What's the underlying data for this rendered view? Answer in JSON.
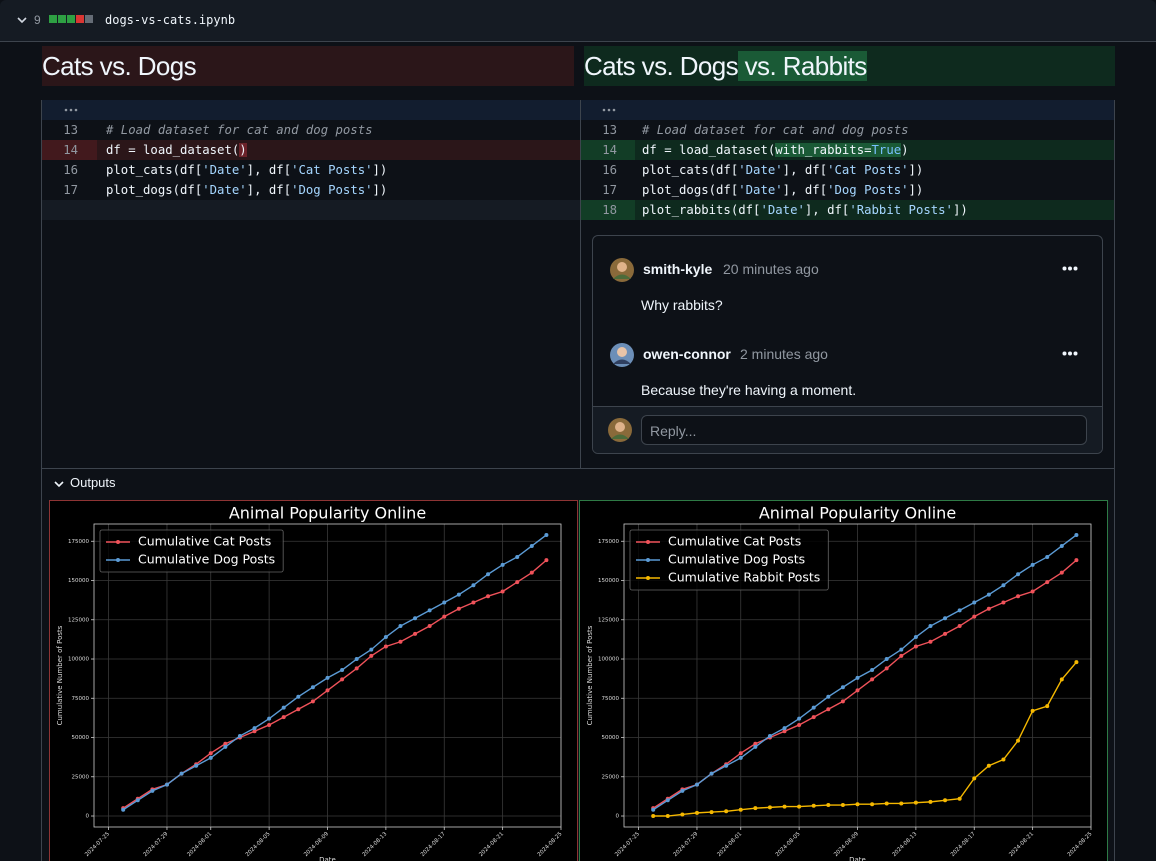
{
  "file": {
    "count": "9",
    "name": "dogs-vs-cats.ipynb"
  },
  "headings": {
    "left": "Cats vs. Dogs",
    "right": "Cats vs. Dogs",
    "right_added": " vs. Rabbits"
  },
  "diff": {
    "left": [
      {
        "num": "13",
        "code": [
          "# Load dataset for cat and dog posts"
        ]
      },
      {
        "num": "14",
        "code": [
          "df = load_dataset(",
          ")"
        ]
      },
      {
        "num": "16",
        "code": [
          "plot_cats(df[",
          "'Date'",
          "], df[",
          "'Cat Posts'",
          "])"
        ]
      },
      {
        "num": "17",
        "code": [
          "plot_dogs(df[",
          "'Date'",
          "], df[",
          "'Dog Posts'",
          "])"
        ]
      }
    ],
    "right": [
      {
        "num": "13",
        "code": [
          "# Load dataset for cat and dog posts"
        ]
      },
      {
        "num": "14",
        "code": [
          "df = load_dataset(",
          "with_rabbits=",
          "True",
          ")"
        ]
      },
      {
        "num": "16",
        "code": [
          "plot_cats(df[",
          "'Date'",
          "], df[",
          "'Cat Posts'",
          "])"
        ]
      },
      {
        "num": "17",
        "code": [
          "plot_dogs(df[",
          "'Date'",
          "], df[",
          "'Dog Posts'",
          "])"
        ]
      },
      {
        "num": "18",
        "code": [
          "plot_rabbits(df[",
          "'Date'",
          "], df[",
          "'Rabbit Posts'",
          "])"
        ]
      }
    ]
  },
  "comments": [
    {
      "author": "smith-kyle",
      "time": "20 minutes ago",
      "body": "Why rabbits?"
    },
    {
      "author": "owen-connor",
      "time": "2 minutes ago",
      "body": "Because they're having a moment."
    }
  ],
  "reply_placeholder": "Reply...",
  "outputs_label": "Outputs",
  "chart_data": [
    {
      "type": "line",
      "title": "Animal Popularity Online",
      "x_label": "Date",
      "y_label": "Cumulative Number of Posts",
      "x": [
        "2024-07-26",
        "2024-07-27",
        "2024-07-28",
        "2024-07-29",
        "2024-07-30",
        "2024-07-31",
        "2024-08-01",
        "2024-08-02",
        "2024-08-03",
        "2024-08-04",
        "2024-08-05",
        "2024-08-06",
        "2024-08-07",
        "2024-08-08",
        "2024-08-09",
        "2024-08-10",
        "2024-08-11",
        "2024-08-12",
        "2024-08-13",
        "2024-08-14",
        "2024-08-15",
        "2024-08-16",
        "2024-08-17",
        "2024-08-18",
        "2024-08-19",
        "2024-08-20",
        "2024-08-21",
        "2024-08-22",
        "2024-08-23",
        "2024-08-24"
      ],
      "series": [
        {
          "name": "Cumulative Cat Posts",
          "color": "#f0525a",
          "values": [
            5000,
            11000,
            17000,
            20000,
            27000,
            33000,
            40000,
            46000,
            50000,
            54000,
            58000,
            63000,
            68000,
            73000,
            80000,
            87000,
            94000,
            102000,
            108000,
            111000,
            116000,
            121000,
            127000,
            132000,
            136000,
            140000,
            143000,
            149000,
            155000,
            163000
          ]
        },
        {
          "name": "Cumulative Dog Posts",
          "color": "#5b9bd5",
          "values": [
            4000,
            10000,
            16000,
            20000,
            27000,
            32000,
            37000,
            44000,
            51000,
            56000,
            62000,
            69000,
            76000,
            82000,
            88000,
            93000,
            100000,
            106000,
            114000,
            121000,
            126000,
            131000,
            136000,
            141000,
            147000,
            154000,
            160000,
            165000,
            172000,
            179000
          ]
        }
      ],
      "xlim": [
        "2024-07-24",
        "2024-08-25"
      ],
      "xticks": [
        "2024-07-25",
        "2024-07-29",
        "2024-08-01",
        "2024-08-05",
        "2024-08-09",
        "2024-08-13",
        "2024-08-17",
        "2024-08-21",
        "2024-08-25"
      ],
      "ylim": [
        -7000,
        186000
      ],
      "yticks": [
        0,
        25000,
        50000,
        75000,
        100000,
        125000,
        150000,
        175000
      ],
      "grid": true,
      "legend": "upper left"
    },
    {
      "type": "line",
      "title": "Animal Popularity Online",
      "x_label": "Date",
      "y_label": "Cumulative Number of Posts",
      "x": [
        "2024-07-26",
        "2024-07-27",
        "2024-07-28",
        "2024-07-29",
        "2024-07-30",
        "2024-07-31",
        "2024-08-01",
        "2024-08-02",
        "2024-08-03",
        "2024-08-04",
        "2024-08-05",
        "2024-08-06",
        "2024-08-07",
        "2024-08-08",
        "2024-08-09",
        "2024-08-10",
        "2024-08-11",
        "2024-08-12",
        "2024-08-13",
        "2024-08-14",
        "2024-08-15",
        "2024-08-16",
        "2024-08-17",
        "2024-08-18",
        "2024-08-19",
        "2024-08-20",
        "2024-08-21",
        "2024-08-22",
        "2024-08-23",
        "2024-08-24"
      ],
      "series": [
        {
          "name": "Cumulative Cat Posts",
          "color": "#f0525a",
          "values": [
            5000,
            11000,
            17000,
            20000,
            27000,
            33000,
            40000,
            46000,
            50000,
            54000,
            58000,
            63000,
            68000,
            73000,
            80000,
            87000,
            94000,
            102000,
            108000,
            111000,
            116000,
            121000,
            127000,
            132000,
            136000,
            140000,
            143000,
            149000,
            155000,
            163000
          ]
        },
        {
          "name": "Cumulative Dog Posts",
          "color": "#5b9bd5",
          "values": [
            4000,
            10000,
            16000,
            20000,
            27000,
            32000,
            37000,
            44000,
            51000,
            56000,
            62000,
            69000,
            76000,
            82000,
            88000,
            93000,
            100000,
            106000,
            114000,
            121000,
            126000,
            131000,
            136000,
            141000,
            147000,
            154000,
            160000,
            165000,
            172000,
            179000
          ]
        },
        {
          "name": "Cumulative Rabbit Posts",
          "color": "#f5b800",
          "values": [
            0,
            0,
            1000,
            2000,
            2500,
            3000,
            4000,
            5000,
            5500,
            6000,
            6000,
            6500,
            7000,
            7000,
            7500,
            7500,
            8000,
            8000,
            8500,
            9000,
            10000,
            11000,
            24000,
            32000,
            36000,
            48000,
            67000,
            70000,
            87000,
            98000
          ]
        }
      ],
      "xlim": [
        "2024-07-24",
        "2024-08-25"
      ],
      "xticks": [
        "2024-07-25",
        "2024-07-29",
        "2024-08-01",
        "2024-08-05",
        "2024-08-09",
        "2024-08-13",
        "2024-08-17",
        "2024-08-21",
        "2024-08-25"
      ],
      "ylim": [
        -7000,
        186000
      ],
      "yticks": [
        0,
        25000,
        50000,
        75000,
        100000,
        125000,
        150000,
        175000
      ],
      "grid": true,
      "legend": "upper left"
    }
  ]
}
